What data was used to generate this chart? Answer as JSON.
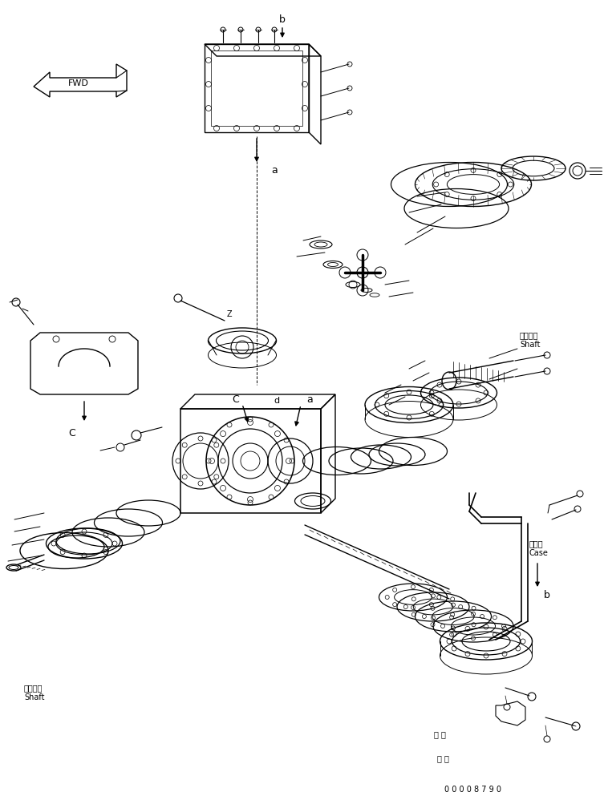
{
  "bg_color": "#ffffff",
  "line_color": "#000000",
  "fig_width": 7.53,
  "fig_height": 9.93,
  "dpi": 100,
  "footer_text": "0 0 0 0 8 7 9 0",
  "labels": {
    "shaft_top_right_1": "シャフト",
    "shaft_top_right_2": "Shaft",
    "shaft_bottom_left_1": "シャフト",
    "shaft_bottom_left_2": "Shaft",
    "case_1": "ケース",
    "case_2": "Case",
    "label_b_top": "b",
    "label_a_top": "a",
    "label_C": "C",
    "label_a_mid": "a",
    "label_d": "d"
  }
}
